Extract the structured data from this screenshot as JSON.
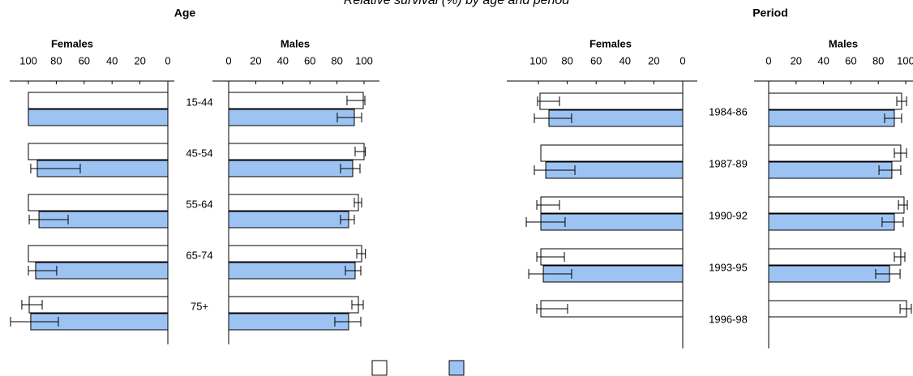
{
  "title": "Relative survival (%) by age and period",
  "headers": [
    "Age",
    "Period"
  ],
  "chart_data": [
    {
      "type": "bar",
      "title": "Females",
      "reversed": true,
      "categories": [
        "15-44",
        "45-54",
        "55-64",
        "65-74",
        "75+"
      ],
      "xlim": [
        0,
        100
      ],
      "xticks": [
        100,
        80,
        60,
        40,
        20,
        0
      ],
      "series": [
        {
          "color": "#ffffff",
          "values": [
            100,
            100,
            100,
            100,
            99.4
          ],
          "ci_low": [
            null,
            null,
            null,
            null,
            90.1
          ],
          "ci_high": [
            null,
            null,
            null,
            null,
            104.7
          ]
        },
        {
          "color": "#9dc3f3",
          "values": [
            100,
            93.6,
            92.4,
            94.8,
            98.3
          ],
          "ci_low": [
            null,
            62.8,
            71.5,
            79.7,
            78.5
          ],
          "ci_high": [
            null,
            98.3,
            99.4,
            100,
            112.8
          ]
        }
      ]
    },
    {
      "type": "bar",
      "title": "Males",
      "reversed": false,
      "xlim": [
        0,
        100
      ],
      "xticks": [
        0,
        20,
        40,
        60,
        80,
        100
      ],
      "series": [
        {
          "color": "#ffffff",
          "values": [
            99.4,
            100,
            95.8,
            98.2,
            95.8
          ],
          "ci_low": [
            87.4,
            93.4,
            92.8,
            94.6,
            91
          ],
          "ci_high": [
            100.6,
            101,
            98.2,
            101,
            99.4
          ]
        },
        {
          "color": "#9dc3f3",
          "values": [
            92.8,
            91.6,
            88.6,
            93.4,
            88.6
          ],
          "ci_low": [
            80.2,
            82.6,
            82.6,
            86.2,
            78.4
          ],
          "ci_high": [
            98.2,
            97,
            92.8,
            97.6,
            97.6
          ]
        }
      ]
    },
    {
      "type": "bar",
      "title": "Females",
      "reversed": true,
      "categories": [
        "1984-86",
        "1987-89",
        "1990-92",
        "1993-95",
        "1996-98"
      ],
      "xlim": [
        0,
        100
      ],
      "xticks": [
        100,
        80,
        60,
        40,
        20,
        0
      ],
      "series": [
        {
          "color": "#ffffff",
          "values": [
            98.9,
            98.3,
            98.3,
            98.3,
            98.3
          ],
          "ci_low": [
            85.4,
            null,
            85.4,
            82,
            79.8
          ],
          "ci_high": [
            100.6,
            null,
            101.1,
            101.1,
            101.1
          ]
        },
        {
          "color": "#9dc3f3",
          "values": [
            92.7,
            94.9,
            98.3,
            96.6,
            null
          ],
          "ci_low": [
            77,
            74.7,
            81.5,
            77,
            null
          ],
          "ci_high": [
            102.8,
            102.8,
            108.4,
            106.7,
            null
          ]
        }
      ]
    },
    {
      "type": "bar",
      "title": "Males",
      "reversed": false,
      "xlim": [
        0,
        100
      ],
      "xticks": [
        0,
        20,
        40,
        60,
        80,
        100
      ],
      "series": [
        {
          "color": "#ffffff",
          "values": [
            97,
            96.4,
            98.8,
            96.4,
            100.6
          ],
          "ci_low": [
            93.5,
            91.7,
            94.7,
            91.7,
            95.9
          ],
          "ci_high": [
            100.6,
            100.6,
            101.2,
            99.4,
            104.1
          ]
        },
        {
          "color": "#9dc3f3",
          "values": [
            91.7,
            89.9,
            91.7,
            88.2,
            null
          ],
          "ci_low": [
            84.6,
            80.5,
            82.8,
            78.1,
            null
          ],
          "ci_high": [
            97,
            96.4,
            98.2,
            95.9,
            null
          ]
        }
      ]
    }
  ]
}
